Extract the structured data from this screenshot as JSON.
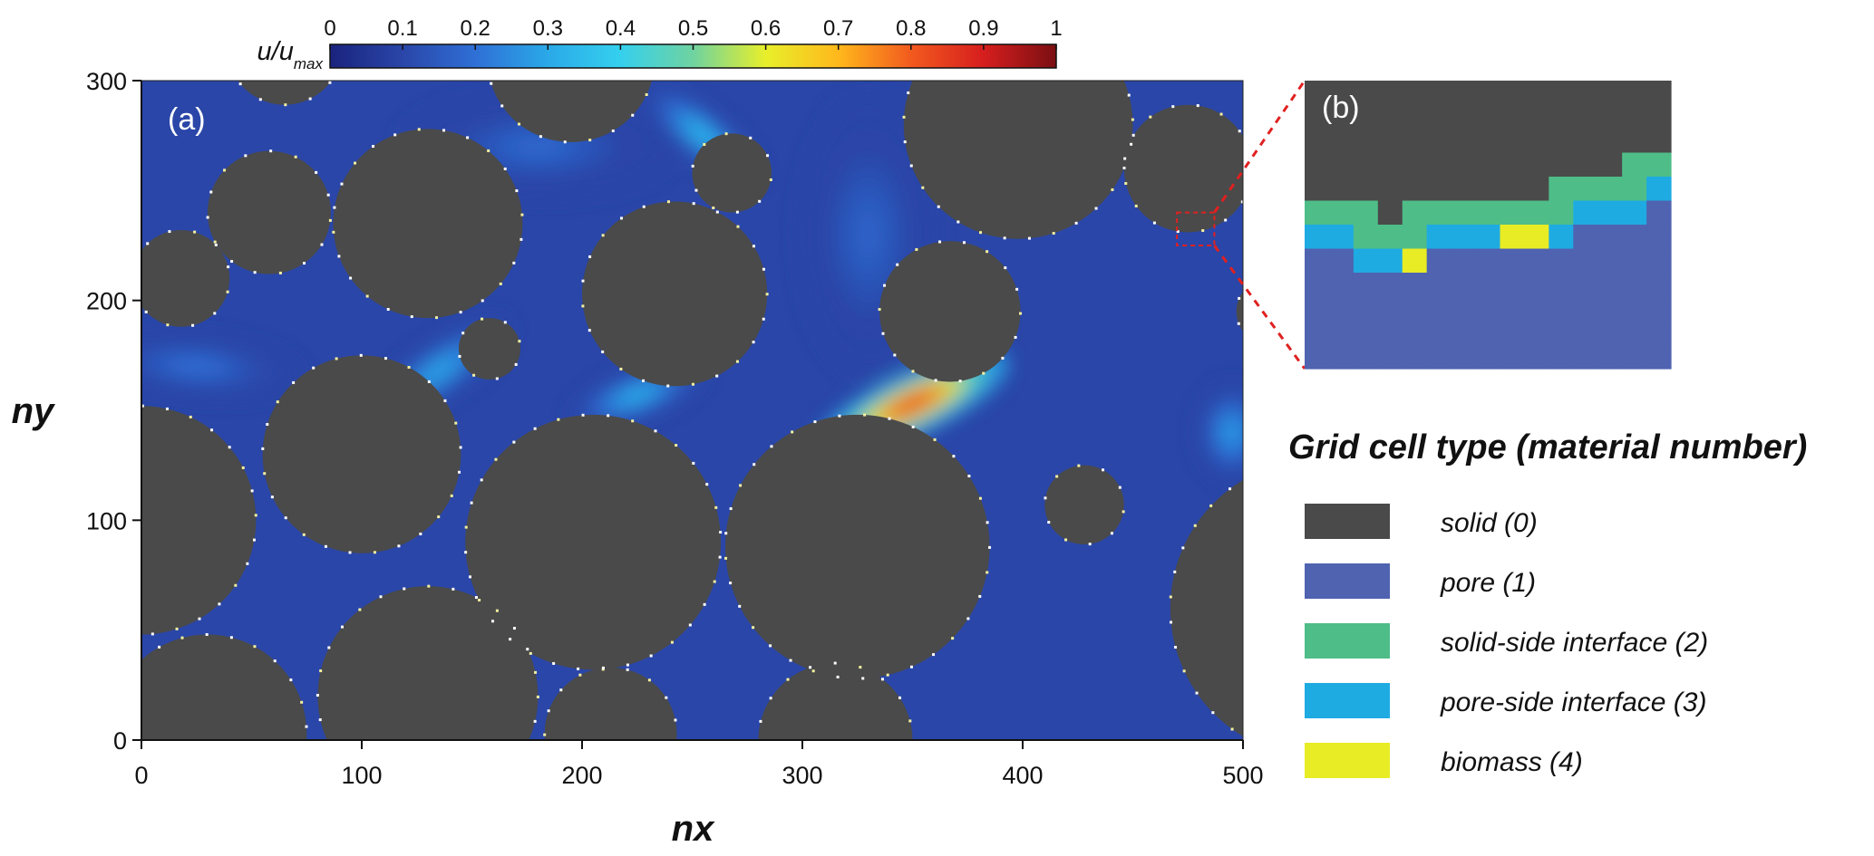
{
  "chart_data": [
    {
      "type": "heatmap",
      "panel_label": "(a)",
      "xlabel": "nx",
      "ylabel": "ny",
      "xlim": [
        0,
        500
      ],
      "ylim": [
        0,
        300
      ],
      "xticks": [
        0,
        100,
        200,
        300,
        400,
        500
      ],
      "yticks": [
        0,
        100,
        200,
        300
      ],
      "colorbar": {
        "label_main": "u/u",
        "label_sub": "max",
        "range": [
          0,
          1
        ],
        "ticks": [
          "0",
          "0.1",
          "0.2",
          "0.3",
          "0.4",
          "0.5",
          "0.6",
          "0.7",
          "0.8",
          "0.9",
          "1"
        ],
        "colormap": [
          "#1a237e",
          "#2a46a8",
          "#2f6fd6",
          "#2aa9e8",
          "#35d0ee",
          "#6fd3a0",
          "#e8ef2a",
          "#ffb81c",
          "#f25a1e",
          "#d61e1e",
          "#7a0f12"
        ]
      },
      "background_value": 0.1,
      "solid_color": "#4a4a4a",
      "solid_grains": [
        {
          "cx": 0,
          "cy": 100,
          "r": 52
        },
        {
          "cx": 18,
          "cy": 210,
          "r": 22
        },
        {
          "cx": 58,
          "cy": 240,
          "r": 28
        },
        {
          "cx": 65,
          "cy": 315,
          "r": 26
        },
        {
          "cx": 130,
          "cy": 235,
          "r": 43
        },
        {
          "cx": 100,
          "cy": 130,
          "r": 45
        },
        {
          "cx": 158,
          "cy": 178,
          "r": 14
        },
        {
          "cx": 195,
          "cy": 310,
          "r": 38
        },
        {
          "cx": 242,
          "cy": 203,
          "r": 42
        },
        {
          "cx": 268,
          "cy": 258,
          "r": 18
        },
        {
          "cx": 205,
          "cy": 90,
          "r": 58
        },
        {
          "cx": 325,
          "cy": 88,
          "r": 60
        },
        {
          "cx": 367,
          "cy": 195,
          "r": 32
        },
        {
          "cx": 398,
          "cy": 280,
          "r": 52
        },
        {
          "cx": 475,
          "cy": 260,
          "r": 29
        },
        {
          "cx": 428,
          "cy": 107,
          "r": 18
        },
        {
          "cx": 535,
          "cy": 60,
          "r": 68
        },
        {
          "cx": 512,
          "cy": 195,
          "r": 15
        },
        {
          "cx": 130,
          "cy": 20,
          "r": 50
        },
        {
          "cx": 30,
          "cy": 3,
          "r": 45
        },
        {
          "cx": 213,
          "cy": 3,
          "r": 30
        },
        {
          "cx": 315,
          "cy": 0,
          "r": 35
        }
      ],
      "flow_hotspots": [
        {
          "x": 350,
          "y": 153,
          "sx": 30,
          "sy": 9,
          "angle": -25,
          "value": 0.85
        },
        {
          "x": 225,
          "y": 157,
          "sx": 20,
          "sy": 7,
          "angle": -20,
          "value": 0.32
        },
        {
          "x": 135,
          "y": 168,
          "sx": 24,
          "sy": 8,
          "angle": -35,
          "value": 0.3
        },
        {
          "x": 255,
          "y": 275,
          "sx": 20,
          "sy": 7,
          "angle": 40,
          "value": 0.34
        },
        {
          "x": 25,
          "y": 170,
          "sx": 30,
          "sy": 9,
          "angle": 5,
          "value": 0.2
        },
        {
          "x": 495,
          "y": 140,
          "sx": 10,
          "sy": 14,
          "angle": 0,
          "value": 0.28
        },
        {
          "x": 180,
          "y": 270,
          "sx": 40,
          "sy": 15,
          "angle": 0,
          "value": 0.18
        },
        {
          "x": 330,
          "y": 230,
          "sx": 20,
          "sy": 40,
          "angle": 0,
          "value": 0.17
        }
      ]
    },
    {
      "type": "heatmap",
      "panel_label": "(b)",
      "grid_columns": 15,
      "grid_rows": 12,
      "cells": [
        [
          0,
          0,
          0,
          0,
          0,
          0,
          0,
          0,
          0,
          0,
          0,
          0,
          0,
          0,
          0
        ],
        [
          0,
          0,
          0,
          0,
          0,
          0,
          0,
          0,
          0,
          0,
          0,
          0,
          0,
          0,
          0
        ],
        [
          0,
          0,
          0,
          0,
          0,
          0,
          0,
          0,
          0,
          0,
          0,
          0,
          0,
          0,
          0
        ],
        [
          0,
          0,
          0,
          0,
          0,
          0,
          0,
          0,
          0,
          0,
          0,
          0,
          0,
          2,
          2
        ],
        [
          0,
          0,
          0,
          0,
          0,
          0,
          0,
          0,
          0,
          0,
          2,
          2,
          2,
          2,
          3
        ],
        [
          2,
          2,
          2,
          0,
          2,
          2,
          2,
          2,
          2,
          2,
          2,
          3,
          3,
          3,
          1
        ],
        [
          3,
          3,
          2,
          2,
          2,
          3,
          3,
          3,
          4,
          4,
          3,
          1,
          1,
          1,
          1
        ],
        [
          1,
          1,
          3,
          3,
          4,
          1,
          1,
          1,
          1,
          1,
          1,
          1,
          1,
          1,
          1
        ],
        [
          1,
          1,
          1,
          1,
          1,
          1,
          1,
          1,
          1,
          1,
          1,
          1,
          1,
          1,
          1
        ],
        [
          1,
          1,
          1,
          1,
          1,
          1,
          1,
          1,
          1,
          1,
          1,
          1,
          1,
          1,
          1
        ],
        [
          1,
          1,
          1,
          1,
          1,
          1,
          1,
          1,
          1,
          1,
          1,
          1,
          1,
          1,
          1
        ],
        [
          1,
          1,
          1,
          1,
          1,
          1,
          1,
          1,
          1,
          1,
          1,
          1,
          1,
          1,
          1
        ]
      ],
      "material_colors": [
        "#4a4a4a",
        "#4f63b0",
        "#4fbd88",
        "#1eabe2",
        "#e8ec24"
      ],
      "inset_source": {
        "x_range": [
          470,
          487
        ],
        "y_range": [
          225,
          240
        ]
      },
      "legend": {
        "title": "Grid cell type (material number)",
        "items": [
          {
            "label": "solid (0)",
            "color": "#4a4a4a"
          },
          {
            "label": "pore (1)",
            "color": "#4f63b0"
          },
          {
            "label": "solid-side interface (2)",
            "color": "#4fbd88"
          },
          {
            "label": "pore-side interface (3)",
            "color": "#1eabe2"
          },
          {
            "label": "biomass (4)",
            "color": "#e8ec24"
          }
        ]
      }
    }
  ]
}
